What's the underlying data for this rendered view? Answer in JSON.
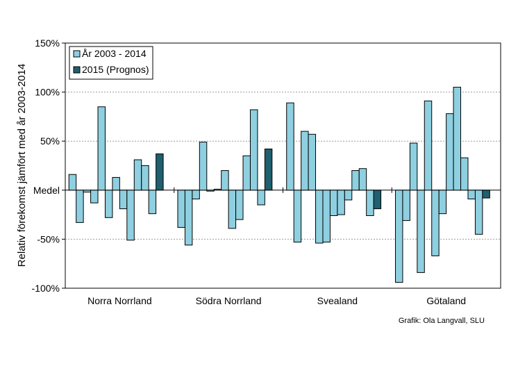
{
  "chart_data": {
    "type": "bar",
    "ylabel": "Relativ förekomst jämfört med år 2003-2014",
    "ylim": [
      -100,
      150
    ],
    "ytick_labels": [
      {
        "value": 150,
        "label": "150%"
      },
      {
        "value": 100,
        "label": "100%"
      },
      {
        "value": 50,
        "label": "50%"
      },
      {
        "value": 0,
        "label": "Medel"
      },
      {
        "value": -50,
        "label": "-50%"
      },
      {
        "value": -100,
        "label": "-100%"
      }
    ],
    "grid": true,
    "legend_position": "top-left",
    "series": [
      {
        "name": "År 2003 - 2014",
        "color": "#8ecfe0"
      },
      {
        "name": "2015 (Prognos)",
        "color": "#1f5f6e"
      }
    ],
    "categories": [
      {
        "label": "Norra Norrland",
        "history": [
          16,
          -33,
          -2,
          -13,
          85,
          -28,
          13,
          -19,
          -51,
          31,
          25,
          -24
        ],
        "forecast": 37
      },
      {
        "label": "Södra Norrland",
        "history": [
          -38,
          -56,
          -9,
          49,
          -1,
          1,
          20,
          -39,
          -30,
          35,
          82,
          -15
        ],
        "forecast": 42
      },
      {
        "label": "Svealand",
        "history": [
          89,
          -53,
          60,
          57,
          -54,
          -53,
          -26,
          -25,
          -10,
          20,
          22,
          -26
        ],
        "forecast": -19
      },
      {
        "label": "Götaland",
        "history": [
          -94,
          -31,
          48,
          -84,
          91,
          -67,
          -24,
          78,
          105,
          33,
          -9,
          -45
        ],
        "forecast": -8
      }
    ],
    "credit": "Grafik: Ola Langvall, SLU"
  }
}
